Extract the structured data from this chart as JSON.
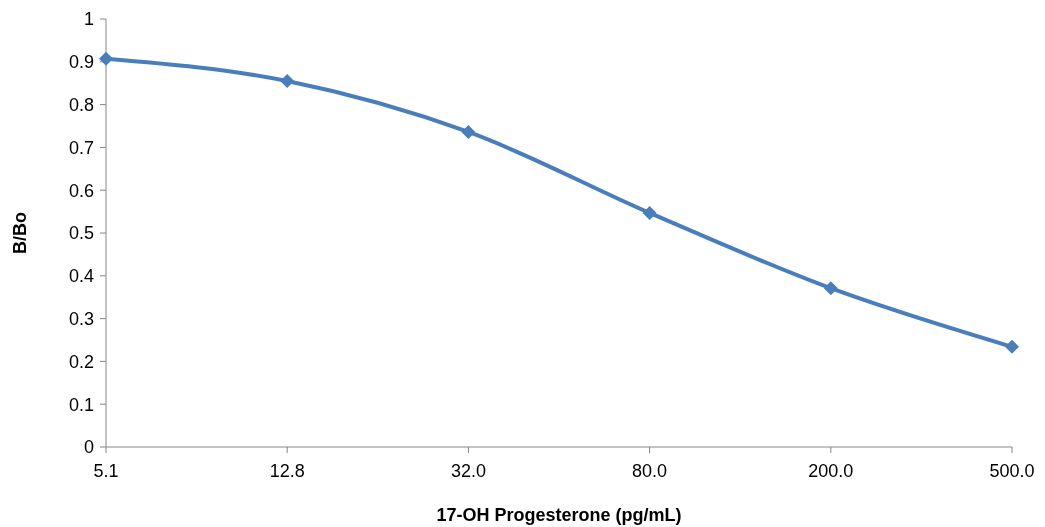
{
  "chart_data": {
    "type": "line",
    "xlabel": "17-OH Progesterone (pg/mL)",
    "ylabel": "B/Bo",
    "categories": [
      "5.1",
      "12.8",
      "32.0",
      "80.0",
      "200.0",
      "500.0"
    ],
    "series": [
      {
        "color": "#4a7ebb",
        "values": [
          0.907,
          0.855,
          0.736,
          0.547,
          0.371,
          0.234
        ]
      }
    ],
    "ylim": [
      0,
      1
    ],
    "yticks": [
      0,
      0.1,
      0.2,
      0.3,
      0.4,
      0.5,
      0.6,
      0.7,
      0.8,
      0.9,
      1
    ],
    "grid": false,
    "marker": "diamond",
    "line_style": "solid"
  }
}
